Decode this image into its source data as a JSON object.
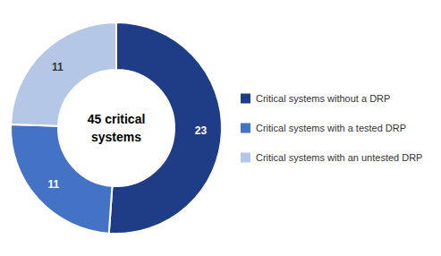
{
  "chart_data": {
    "type": "pie",
    "categories": [
      "Critical systems without a DRP",
      "Critical systems with a tested DRP",
      "Critical systems with an untested DRP"
    ],
    "values": [
      23,
      11,
      11
    ],
    "colors": [
      "#1F3D87",
      "#4472C4",
      "#B4C7E7"
    ],
    "annotations": [
      "45 critical",
      "systems"
    ],
    "data_labels": true,
    "legend": "right"
  }
}
